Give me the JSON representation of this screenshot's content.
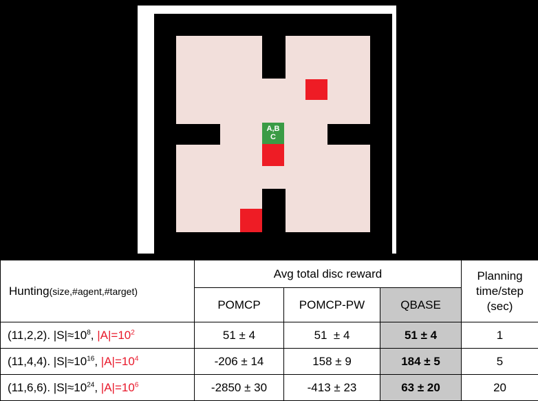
{
  "figure": {
    "green_cell_line1": "A,B",
    "green_cell_line2": "C",
    "colors": {
      "background": "#000000",
      "floor": "#f2dfdb",
      "wall": "#000000",
      "target": "#ee1c25",
      "agents": "#3a9b45"
    }
  },
  "table": {
    "header": {
      "hunting_main": "Hunting",
      "hunting_params": "(size,#agent,#target)",
      "group_title": "Avg total disc reward",
      "col_pomcp": "POMCP",
      "col_pomcp_pw": "POMCP-PW",
      "col_qbase": "QBASE",
      "planning_line1": "Planning",
      "planning_line2": "time/step",
      "planning_line3": "(sec)"
    },
    "rows": [
      {
        "setting": "(11,2,2).",
        "s_prefix": "|S|≈10",
        "s_exp": "8",
        "a_prefix": "|A|=10",
        "a_exp": "2",
        "pomcp": "51 ± 4",
        "pomcp_pw": "51  ± 4",
        "qbase": "51 ± 4",
        "planning": "1"
      },
      {
        "setting": "(11,4,4).",
        "s_prefix": "|S|≈10",
        "s_exp": "16",
        "a_prefix": "|A|=10",
        "a_exp": "4",
        "pomcp": "-206 ± 14",
        "pomcp_pw": "158 ± 9",
        "qbase": "184 ± 5",
        "planning": "5"
      },
      {
        "setting": "(11,6,6).",
        "s_prefix": "|S|≈10",
        "s_exp": "24",
        "a_prefix": "|A|=10",
        "a_exp": "6",
        "pomcp": "-2850 ± 30",
        "pomcp_pw": "-413 ± 23",
        "qbase": "63 ± 20",
        "planning": "20"
      }
    ]
  }
}
